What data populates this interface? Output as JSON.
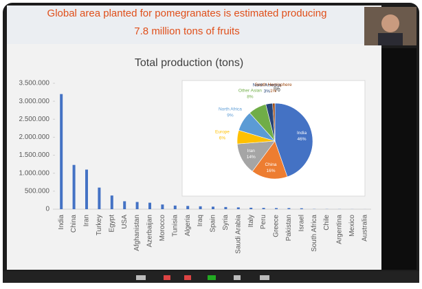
{
  "slide": {
    "title_line1": "Global area planted for pomegranates is estimated producing",
    "title_line2": "7.8 million tons of fruits"
  },
  "chart_data": [
    {
      "type": "bar",
      "title": "Total production (tons)",
      "color": "#4472c4",
      "categories": [
        "India",
        "China",
        "Iran",
        "Turkey",
        "Egypt",
        "USA",
        "Afghanistan",
        "Azerbaijan",
        "Morocco",
        "Tunisia",
        "Algeria",
        "Iraq",
        "Spain",
        "Syria",
        "Saudi Arabia",
        "Italy",
        "Peru",
        "Greece",
        "Pakistan",
        "Israel",
        "South Africa",
        "Chile",
        "Argentina",
        "Mexico",
        "Australia"
      ],
      "values": [
        3200000,
        1230000,
        1100000,
        600000,
        380000,
        220000,
        200000,
        180000,
        130000,
        100000,
        90000,
        80000,
        70000,
        60000,
        50000,
        40000,
        35000,
        30000,
        30000,
        25000,
        5000,
        4000,
        3000,
        2000,
        1000
      ],
      "ylim": [
        0,
        3500000
      ],
      "yticks": [
        0,
        {
          "value": 500000,
          "label": "500.000"
        },
        {
          "value": 1000000,
          "label": "1.000.000"
        },
        {
          "value": 1500000,
          "label": "1.500.000"
        },
        {
          "value": 2000000,
          "label": "2.000.000"
        },
        {
          "value": 2500000,
          "label": "2.500.000"
        },
        {
          "value": 3000000,
          "label": "3.000.000"
        },
        {
          "value": 3500000,
          "label": "3.500.000"
        }
      ]
    },
    {
      "type": "pie",
      "title": "%",
      "categories": [
        "India",
        "China",
        "Iran",
        "Europe",
        "North Africa",
        "Other Asian",
        "North America",
        "South Hemisphere"
      ],
      "values": [
        46,
        16,
        14,
        6,
        9,
        8,
        3,
        1
      ],
      "value_labels": [
        "46%",
        "16%",
        "14%",
        "6%",
        "9%",
        "8%",
        "3%",
        "1%"
      ],
      "colors": [
        "#4472c4",
        "#ed7d31",
        "#a5a5a5",
        "#ffc000",
        "#5b9bd5",
        "#70ad47",
        "#264478",
        "#9e480e"
      ]
    }
  ]
}
